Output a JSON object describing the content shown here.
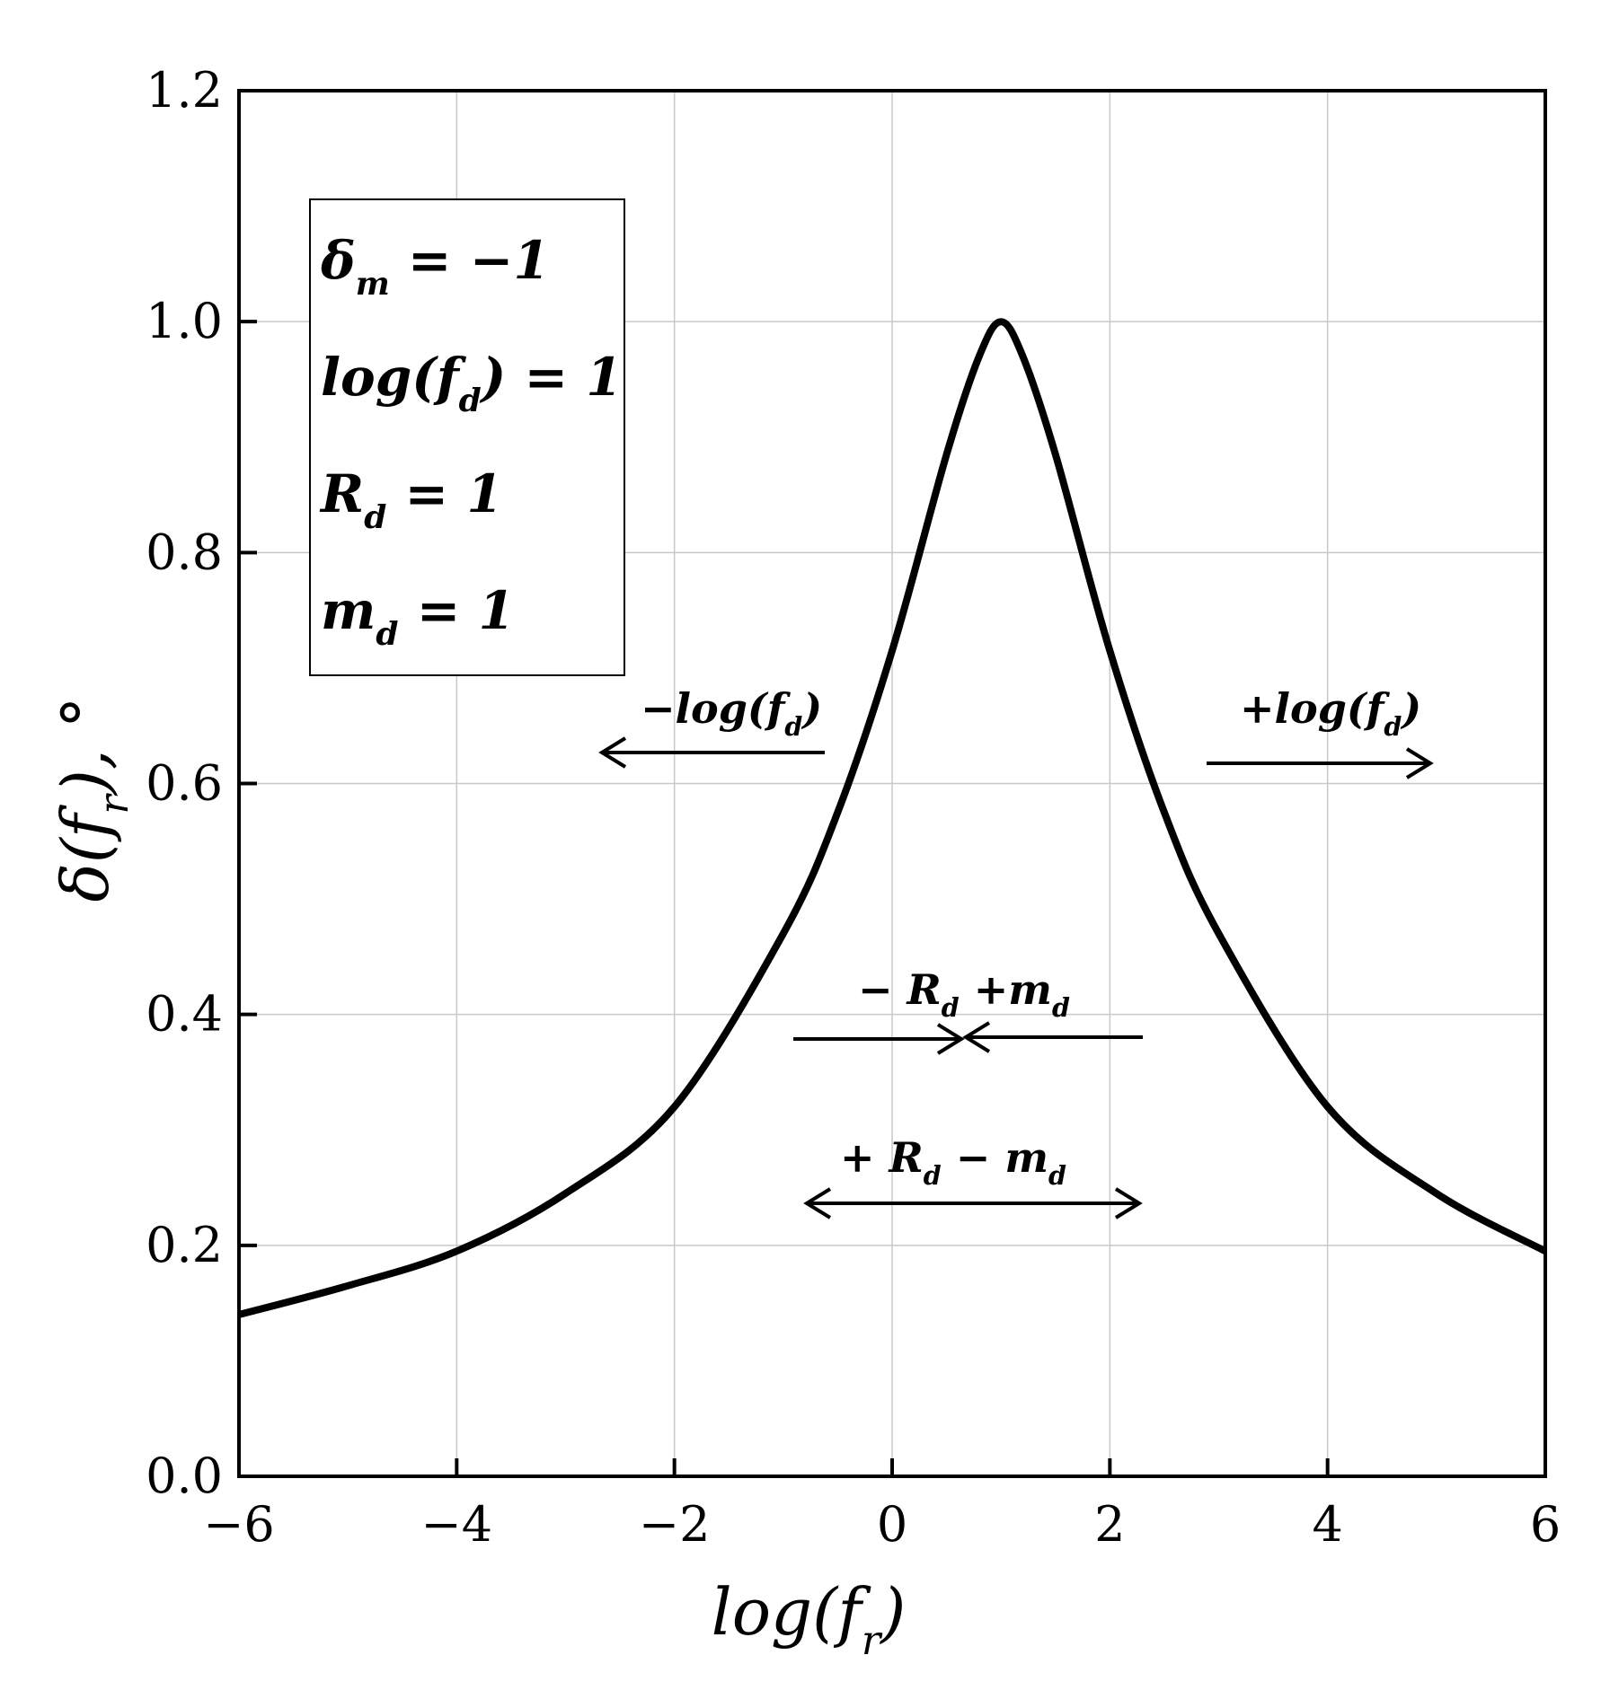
{
  "chart_data": {
    "type": "line",
    "xlabel": "log(fr)",
    "ylabel": "δ(fr), °",
    "xlim": [
      -6,
      6
    ],
    "ylim": [
      0,
      1.2
    ],
    "xticks": [
      "−6",
      "−4",
      "−2",
      "0",
      "2",
      "4",
      "6"
    ],
    "yticks": [
      "0.0",
      "0.2",
      "0.4",
      "0.6",
      "0.8",
      "1.0",
      "1.2"
    ],
    "grid": true,
    "series": [
      {
        "x": [
          -6,
          -5,
          -4,
          -3,
          -2,
          -1,
          -0.5,
          0,
          0.5,
          0.8,
          1.0,
          1.2,
          1.5,
          2,
          2.5,
          3,
          4,
          5,
          6
        ],
        "y": [
          0.14,
          0.165,
          0.195,
          0.245,
          0.32,
          0.47,
          0.575,
          0.715,
          0.885,
          0.97,
          1.0,
          0.97,
          0.885,
          0.715,
          0.575,
          0.47,
          0.32,
          0.245,
          0.195
        ]
      }
    ],
    "legend_box": {
      "line1": {
        "main": "δ",
        "sub": "m",
        "rest": " = −1"
      },
      "line2": {
        "main": "log(f",
        "sub": "d",
        "rest": ") = 1"
      },
      "line3": {
        "main": "R",
        "sub": "d",
        "rest": " = 1"
      },
      "line4": {
        "main": "m",
        "sub": "d",
        "rest": " = 1"
      }
    },
    "annotations": {
      "left_shift": {
        "a": "−log(f",
        "sub": "d",
        "b": ")"
      },
      "right_shift": {
        "a": "+log(f",
        "sub": "d",
        "b": ")"
      },
      "narrow": {
        "a": "− R",
        "sub1": "d",
        "b": " +m",
        "sub2": "d"
      },
      "widen": {
        "a": "+ R",
        "sub1": "d",
        "b": " − m",
        "sub2": "d"
      }
    }
  },
  "axis_text": {
    "x_main": "log(f",
    "x_sub": "r",
    "x_end": ")",
    "y_main": "δ(f",
    "y_sub": "r",
    "y_end": "),  °"
  }
}
